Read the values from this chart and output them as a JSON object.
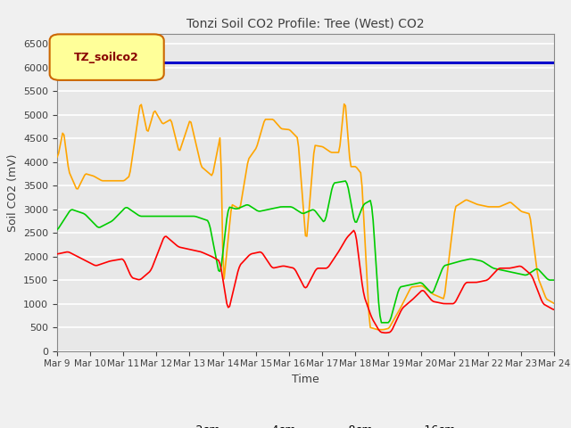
{
  "title": "Tonzi Soil CO2 Profile: Tree (West) CO2",
  "ylabel": "Soil CO2 (mV)",
  "xlabel": "Time",
  "xlim": [
    0,
    360
  ],
  "ylim": [
    0,
    6700
  ],
  "yticks": [
    0,
    500,
    1000,
    1500,
    2000,
    2500,
    3000,
    3500,
    4000,
    4500,
    5000,
    5500,
    6000,
    6500
  ],
  "xtick_labels": [
    "Mar 9",
    "Mar 10",
    "Mar 11",
    "Mar 12",
    "Mar 13",
    "Mar 14",
    "Mar 15",
    "Mar 16",
    "Mar 17",
    "Mar 18",
    "Mar 19",
    "Mar 20",
    "Mar 21",
    "Mar 22",
    "Mar 23",
    "Mar 24"
  ],
  "xtick_positions": [
    0,
    24,
    48,
    72,
    96,
    120,
    144,
    168,
    192,
    216,
    240,
    264,
    288,
    312,
    336,
    360
  ],
  "hline_value": 6100,
  "hline_color": "#0000CC",
  "legend_label": "TZ_soilco2",
  "legend_box_color": "#FFFF99",
  "legend_box_edge": "#CC6600",
  "legend_text_color": "#880000",
  "colors": {
    "2cm": "#FF0000",
    "4cm": "#FFA500",
    "8cm": "#00CC00",
    "16cm": "#0000CC"
  },
  "background_color": "#E8E8E8",
  "plot_bg_color": "#E8E8E8",
  "fig_bg_color": "#F0F0F0",
  "grid_color": "#FFFFFF",
  "figsize": [
    6.4,
    4.8
  ],
  "dpi": 100,
  "title_color": "#404040",
  "title_fontsize": 10,
  "ylabel_fontsize": 9,
  "xlabel_fontsize": 9,
  "tick_fontsize": 8,
  "xtick_fontsize": 7.5,
  "legend_fontsize": 9
}
